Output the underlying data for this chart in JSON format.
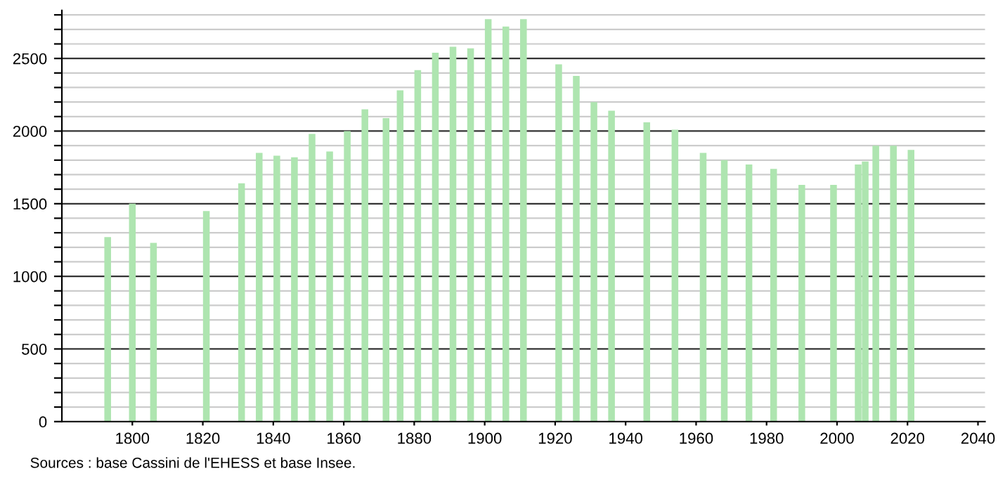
{
  "chart_data": {
    "type": "bar",
    "x": [
      1793,
      1800,
      1806,
      1821,
      1831,
      1836,
      1841,
      1846,
      1851,
      1856,
      1861,
      1866,
      1872,
      1876,
      1881,
      1886,
      1891,
      1896,
      1901,
      1906,
      1911,
      1921,
      1926,
      1931,
      1936,
      1946,
      1954,
      1962,
      1968,
      1975,
      1982,
      1990,
      1999,
      2006,
      2008,
      2011,
      2016,
      2021
    ],
    "values": [
      1270,
      1500,
      1230,
      1450,
      1640,
      1850,
      1830,
      1820,
      1980,
      1860,
      2000,
      2150,
      2090,
      2280,
      2420,
      2540,
      2580,
      2570,
      2770,
      2720,
      2770,
      2460,
      2380,
      2200,
      2140,
      2060,
      2010,
      1850,
      1800,
      1770,
      1740,
      1630,
      1630,
      1770,
      1790,
      1900,
      1900,
      1870
    ],
    "color": "#aee5b0",
    "xlim": [
      1780,
      2042
    ],
    "xticks": [
      1800,
      1820,
      1840,
      1860,
      1880,
      1900,
      1920,
      1940,
      1960,
      1980,
      2000,
      2020,
      2040
    ],
    "ylim": [
      0,
      2830
    ],
    "yticks": [
      0,
      {
        "value": 100,
        "label": null
      },
      {
        "value": 200,
        "label": null
      },
      {
        "value": 300,
        "label": null
      },
      {
        "value": 400,
        "label": null
      },
      500,
      {
        "value": 600,
        "label": null
      },
      {
        "value": 700,
        "label": null
      },
      {
        "value": 800,
        "label": null
      },
      {
        "value": 900,
        "label": null
      },
      1000,
      {
        "value": 1100,
        "label": null
      },
      {
        "value": 1200,
        "label": null
      },
      {
        "value": 1300,
        "label": null
      },
      {
        "value": 1400,
        "label": null
      },
      1500,
      {
        "value": 1600,
        "label": null
      },
      {
        "value": 1700,
        "label": null
      },
      {
        "value": 1800,
        "label": null
      },
      {
        "value": 1900,
        "label": null
      },
      2000,
      {
        "value": 2100,
        "label": null
      },
      {
        "value": 2200,
        "label": null
      },
      {
        "value": 2300,
        "label": null
      },
      {
        "value": 2400,
        "label": null
      },
      2500,
      {
        "value": 2600,
        "label": null
      },
      {
        "value": 2700,
        "label": null
      },
      {
        "value": 2800,
        "label": null
      }
    ],
    "grid": "y",
    "legend": false,
    "annotations": [
      "Sources : base Cassini de l'EHESS et base Insee."
    ]
  }
}
